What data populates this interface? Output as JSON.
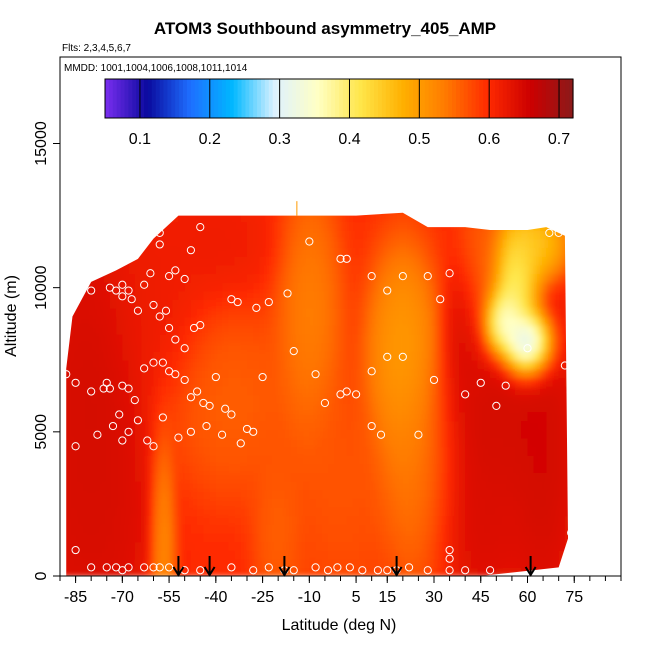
{
  "chart_data": {
    "type": "heatmap",
    "title": "ATOM3 Southbound asymmetry_405_AMP",
    "flights_label": "Flts: 2,3,4,5,6,7",
    "dates_label": "MMDD: 1001,1004,1006,1008,1011,1014",
    "xlabel": "Latitude (deg N)",
    "ylabel": "Altitude (m)",
    "xlim": [
      -90,
      90
    ],
    "ylim": [
      0,
      18000
    ],
    "x_ticks": [
      -85,
      -70,
      -55,
      -40,
      -25,
      -10,
      5,
      15,
      30,
      45,
      60,
      75
    ],
    "x_tick_labels": [
      "-85",
      "-70",
      "-55",
      "-40",
      "-25",
      "-10",
      "5",
      "15",
      "30",
      "45",
      "60",
      "75"
    ],
    "y_ticks": [
      0,
      5000,
      10000,
      15000
    ],
    "y_tick_labels": [
      "0",
      "5000",
      "10000",
      "15000"
    ],
    "colorbar": {
      "range": [
        0.05,
        0.72
      ],
      "ticks": [
        0.1,
        0.2,
        0.3,
        0.4,
        0.5,
        0.6,
        0.7
      ],
      "tick_labels": [
        "0.1",
        "0.2",
        "0.3",
        "0.4",
        "0.5",
        "0.6",
        "0.7"
      ],
      "colors": [
        "#7a2ef0",
        "#0a0a9e",
        "#1e6eff",
        "#00b8ff",
        "#dff2ff",
        "#ffffc4",
        "#ffe64a",
        "#ffb000",
        "#ff7a00",
        "#ff2a00",
        "#cc0000",
        "#8b1a1a"
      ]
    },
    "coverage_outline": [
      [
        -88,
        0
      ],
      [
        -88,
        7200
      ],
      [
        -86,
        9000
      ],
      [
        -80,
        10200
      ],
      [
        -72,
        10600
      ],
      [
        -65,
        11000
      ],
      [
        -60,
        11700
      ],
      [
        -52,
        12500
      ],
      [
        -15,
        12500
      ],
      [
        5,
        12500
      ],
      [
        20,
        12600
      ],
      [
        28,
        12100
      ],
      [
        40,
        12100
      ],
      [
        48,
        12000
      ],
      [
        60,
        12000
      ],
      [
        66,
        12100
      ],
      [
        72,
        11800
      ],
      [
        73,
        1300
      ],
      [
        70,
        300
      ],
      [
        45,
        0
      ],
      [
        -88,
        0
      ]
    ],
    "field_blobs": [
      {
        "lat": -80,
        "alt": 6000,
        "value": 0.66,
        "r_lat": 14,
        "r_alt": 5000
      },
      {
        "lat": -80,
        "alt": 1500,
        "value": 0.65,
        "r_lat": 14,
        "r_alt": 2500
      },
      {
        "lat": -60,
        "alt": 9500,
        "value": 0.62,
        "r_lat": 12,
        "r_alt": 2500
      },
      {
        "lat": -40,
        "alt": 11500,
        "value": 0.62,
        "r_lat": 14,
        "r_alt": 1500
      },
      {
        "lat": -10,
        "alt": 9000,
        "value": 0.52,
        "r_lat": 8,
        "r_alt": 3500
      },
      {
        "lat": -35,
        "alt": 6000,
        "value": 0.55,
        "r_lat": 16,
        "r_alt": 2500
      },
      {
        "lat": 20,
        "alt": 7500,
        "value": 0.48,
        "r_lat": 9,
        "r_alt": 3000
      },
      {
        "lat": 25,
        "alt": 3500,
        "value": 0.53,
        "r_lat": 10,
        "r_alt": 3000
      },
      {
        "lat": 0,
        "alt": 3000,
        "value": 0.56,
        "r_lat": 12,
        "r_alt": 3000
      },
      {
        "lat": -20,
        "alt": 1500,
        "value": 0.55,
        "r_lat": 6,
        "r_alt": 2000
      },
      {
        "lat": -57,
        "alt": 1000,
        "value": 0.5,
        "r_lat": 3,
        "r_alt": 3000
      },
      {
        "lat": 50,
        "alt": 5500,
        "value": 0.66,
        "r_lat": 15,
        "r_alt": 2500
      },
      {
        "lat": 45,
        "alt": 2000,
        "value": 0.65,
        "r_lat": 12,
        "r_alt": 2500
      },
      {
        "lat": 45,
        "alt": 10500,
        "value": 0.55,
        "r_lat": 6,
        "r_alt": 2000
      },
      {
        "lat": 56,
        "alt": 10000,
        "value": 0.35,
        "r_lat": 6,
        "r_alt": 1500
      },
      {
        "lat": 60,
        "alt": 8000,
        "value": 0.1,
        "r_lat": 6,
        "r_alt": 900
      },
      {
        "lat": 52,
        "alt": 8800,
        "value": 0.25,
        "r_lat": 5,
        "r_alt": 900
      },
      {
        "lat": 62,
        "alt": 11500,
        "value": 0.42,
        "r_lat": 8,
        "r_alt": 1000
      },
      {
        "lat": 40,
        "alt": 8500,
        "value": 0.65,
        "r_lat": 5,
        "r_alt": 2000
      },
      {
        "lat": 65,
        "alt": 4000,
        "value": 0.66,
        "r_lat": 8,
        "r_alt": 4000
      }
    ],
    "field_base_value": 0.6,
    "sample_points": [
      [
        -86,
        9900
      ],
      [
        -80,
        9900
      ],
      [
        -74,
        10000
      ],
      [
        -72,
        9900
      ],
      [
        -70,
        10100
      ],
      [
        -70,
        9700
      ],
      [
        -68,
        9900
      ],
      [
        -67,
        9600
      ],
      [
        -65,
        9200
      ],
      [
        -63,
        10100
      ],
      [
        -61,
        10500
      ],
      [
        -58,
        11500
      ],
      [
        -55,
        10400
      ],
      [
        -53,
        10600
      ],
      [
        -50,
        10300
      ],
      [
        -48,
        11300
      ],
      [
        -45,
        12100
      ],
      [
        -60,
        9400
      ],
      [
        -58,
        9000
      ],
      [
        -56,
        9200
      ],
      [
        -55,
        8600
      ],
      [
        -53,
        8200
      ],
      [
        -50,
        7900
      ],
      [
        -47,
        8600
      ],
      [
        -45,
        8700
      ],
      [
        -35,
        9600
      ],
      [
        -33,
        9500
      ],
      [
        -27,
        9300
      ],
      [
        -23,
        9500
      ],
      [
        -17,
        9800
      ],
      [
        -10,
        11600
      ],
      [
        0,
        11000
      ],
      [
        2,
        11000
      ],
      [
        10,
        10400
      ],
      [
        15,
        9900
      ],
      [
        20,
        10400
      ],
      [
        28,
        10400
      ],
      [
        32,
        9600
      ],
      [
        35,
        10500
      ],
      [
        -88,
        7000
      ],
      [
        -85,
        6700
      ],
      [
        -80,
        6400
      ],
      [
        -76,
        6500
      ],
      [
        -74,
        6500
      ],
      [
        -70,
        6600
      ],
      [
        -68,
        6500
      ],
      [
        -66,
        6100
      ],
      [
        -63,
        7200
      ],
      [
        -60,
        7400
      ],
      [
        -57,
        7400
      ],
      [
        -55,
        7100
      ],
      [
        -53,
        7000
      ],
      [
        -50,
        6800
      ],
      [
        -48,
        6200
      ],
      [
        -46,
        6400
      ],
      [
        -44,
        6000
      ],
      [
        -42,
        5900
      ],
      [
        -40,
        6900
      ],
      [
        -37,
        5800
      ],
      [
        -35,
        5600
      ],
      [
        -30,
        5100
      ],
      [
        -25,
        6900
      ],
      [
        -15,
        7800
      ],
      [
        -8,
        7000
      ],
      [
        -5,
        6000
      ],
      [
        0,
        6300
      ],
      [
        2,
        6400
      ],
      [
        5,
        6300
      ],
      [
        10,
        7100
      ],
      [
        15,
        7600
      ],
      [
        20,
        7600
      ],
      [
        30,
        6800
      ],
      [
        -85,
        4500
      ],
      [
        -78,
        4900
      ],
      [
        -73,
        5200
      ],
      [
        -70,
        4700
      ],
      [
        -68,
        5000
      ],
      [
        -65,
        5400
      ],
      [
        -62,
        4700
      ],
      [
        -60,
        4500
      ],
      [
        -57,
        5500
      ],
      [
        -52,
        4800
      ],
      [
        -48,
        5000
      ],
      [
        -43,
        5200
      ],
      [
        -38,
        4900
      ],
      [
        -32,
        4600
      ],
      [
        -28,
        5000
      ],
      [
        10,
        5200
      ],
      [
        13,
        4900
      ],
      [
        25,
        4900
      ],
      [
        -85,
        900
      ],
      [
        -80,
        300
      ],
      [
        -75,
        300
      ],
      [
        -72,
        300
      ],
      [
        -70,
        200
      ],
      [
        -68,
        300
      ],
      [
        -63,
        300
      ],
      [
        -60,
        300
      ],
      [
        -58,
        300
      ],
      [
        -55,
        300
      ],
      [
        -50,
        200
      ],
      [
        -45,
        200
      ],
      [
        -35,
        300
      ],
      [
        -28,
        200
      ],
      [
        -23,
        300
      ],
      [
        -18,
        200
      ],
      [
        -15,
        200
      ],
      [
        -8,
        300
      ],
      [
        -4,
        200
      ],
      [
        -1,
        300
      ],
      [
        3,
        300
      ],
      [
        7,
        200
      ],
      [
        12,
        200
      ],
      [
        15,
        200
      ],
      [
        18,
        200
      ],
      [
        22,
        300
      ],
      [
        28,
        200
      ],
      [
        35,
        200
      ],
      [
        40,
        200
      ],
      [
        48,
        200
      ],
      [
        35,
        900
      ],
      [
        35,
        600
      ],
      [
        45,
        6700
      ],
      [
        40,
        6300
      ],
      [
        53,
        6600
      ],
      [
        50,
        5900
      ],
      [
        60,
        7900
      ],
      [
        67,
        11900
      ],
      [
        70,
        11900
      ],
      [
        72,
        7300
      ],
      [
        74,
        1500
      ],
      [
        -75,
        6700
      ],
      [
        -71,
        5600
      ],
      [
        -58,
        11900
      ]
    ],
    "arrow_latitudes": [
      -52,
      -42,
      -18,
      18,
      61
    ]
  }
}
